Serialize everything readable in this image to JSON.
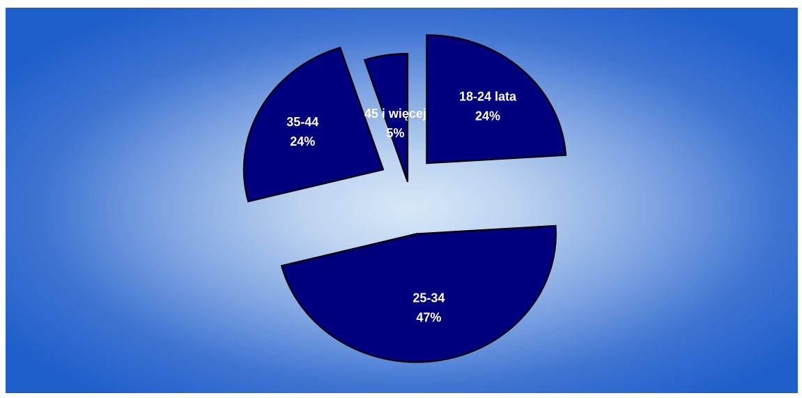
{
  "chart_data": {
    "type": "pie",
    "exploded": true,
    "slices": [
      {
        "label": "18-24 lata",
        "value": 24,
        "value_label": "24%",
        "color": "#00007f"
      },
      {
        "label": "25-34",
        "value": 47,
        "value_label": "47%",
        "color": "#00007f"
      },
      {
        "label": "35-44",
        "value": 24,
        "value_label": "24%",
        "color": "#00007f"
      },
      {
        "label": "45 i więcej",
        "value": 5,
        "value_label": "5%",
        "color": "#00007f"
      }
    ],
    "label_color": "#ffffff",
    "border_color": "#000000",
    "background": {
      "style": "radial-gradient",
      "center": "#d8e8f8",
      "edge": "#1f5fcb"
    }
  }
}
